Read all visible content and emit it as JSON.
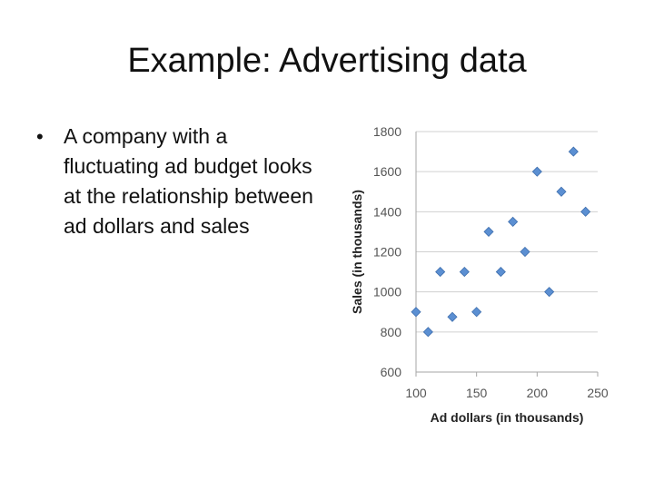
{
  "slide": {
    "title": "Example: Advertising data",
    "bullets": [
      {
        "symbol": "•",
        "text": "A company with a fluctuating ad budget looks at the relationship between ad dollars and sales"
      }
    ]
  },
  "chart_data": {
    "type": "scatter",
    "xlabel": "Ad dollars (in thousands)",
    "ylabel": "Sales (in thousands)",
    "xlim": [
      100,
      250
    ],
    "ylim": [
      600,
      1800
    ],
    "xticks": [
      100,
      150,
      200,
      250
    ],
    "yticks": [
      600,
      800,
      1000,
      1200,
      1400,
      1600,
      1800
    ],
    "grid": "horizontal",
    "marker": "diamond",
    "marker_color": "#5b8fd2",
    "x": [
      100,
      110,
      120,
      130,
      140,
      150,
      160,
      170,
      180,
      190,
      200,
      210,
      220,
      230,
      240
    ],
    "y": [
      900,
      800,
      1100,
      875,
      1100,
      900,
      1300,
      1100,
      1350,
      1200,
      1600,
      1000,
      1500,
      1700,
      1400
    ]
  }
}
